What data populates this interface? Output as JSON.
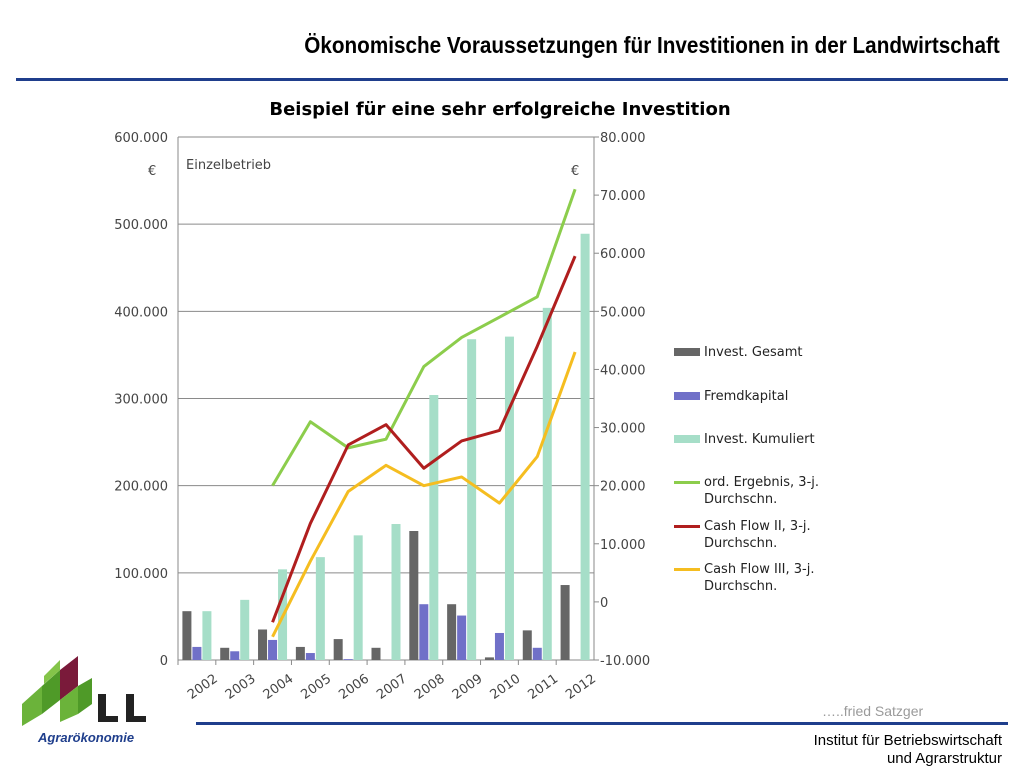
{
  "page": {
    "title": "Ökonomische Voraussetzungen für Investitionen in der Landwirtschaft",
    "chart_title": "Beispiel für eine sehr erfolgreiche Investition",
    "author": "…..fried Satzger",
    "institute": [
      "Institut für Betriebswirtschaft",
      "und Agrarstruktur"
    ],
    "logo_text": "Agrarökonomie",
    "accent_color": "#1f3e8c"
  },
  "chart_data": {
    "type": "bar",
    "title": "Beispiel für eine sehr erfolgreiche Investition",
    "annotation": "Einzelbetrieb",
    "y_left_label": "€",
    "y_right_label": "€",
    "ylim_left": [
      0,
      600000
    ],
    "ylim_right": [
      -10000,
      80000
    ],
    "yticks_left": [
      "0",
      "100.000",
      "200.000",
      "300.000",
      "400.000",
      "500.000",
      "600.000"
    ],
    "yticks_right": [
      "-10.000",
      "0",
      "10.000",
      "20.000",
      "30.000",
      "40.000",
      "50.000",
      "60.000",
      "70.000",
      "80.000"
    ],
    "categories": [
      "2002",
      "2003",
      "2004",
      "2005",
      "2006",
      "2007",
      "2008",
      "2009",
      "2010",
      "2011",
      "2012"
    ],
    "grid": "horizontal",
    "legend_position": "right",
    "bar_series": [
      {
        "name": "Invest. Gesamt",
        "axis": "left",
        "color": "#666666",
        "values": [
          56000,
          14000,
          35000,
          15000,
          24000,
          14000,
          148000,
          64000,
          3000,
          34000,
          86000
        ]
      },
      {
        "name": "Fremdkapital",
        "axis": "left",
        "color": "#7070c8",
        "values": [
          15000,
          10000,
          23000,
          8000,
          1000,
          0,
          64000,
          51000,
          31000,
          14000,
          0
        ]
      },
      {
        "name": "Invest. Kumuliert",
        "axis": "left",
        "color": "#a6dec8",
        "values": [
          56000,
          69000,
          104000,
          118000,
          143000,
          156000,
          304000,
          368000,
          371000,
          404000,
          489000
        ]
      }
    ],
    "line_series": [
      {
        "name": "ord. Ergebnis, 3-j. Durchschn.",
        "axis": "right",
        "color": "#8ccd4c",
        "start_index": 2,
        "values": [
          20000,
          31000,
          26500,
          28000,
          40500,
          45500,
          49000,
          52500,
          71000
        ]
      },
      {
        "name": "Cash Flow II, 3-j. Durchschn.",
        "axis": "right",
        "color": "#b01e1e",
        "start_index": 2,
        "values": [
          -3500,
          13500,
          27000,
          30500,
          23000,
          27700,
          29500,
          44000,
          59500
        ]
      },
      {
        "name": "Cash Flow III, 3-j. Durchschn.",
        "axis": "right",
        "color": "#f5bd20",
        "start_index": 2,
        "values": [
          -6000,
          7000,
          19000,
          23500,
          20000,
          21500,
          17000,
          25000,
          43000
        ]
      }
    ]
  }
}
